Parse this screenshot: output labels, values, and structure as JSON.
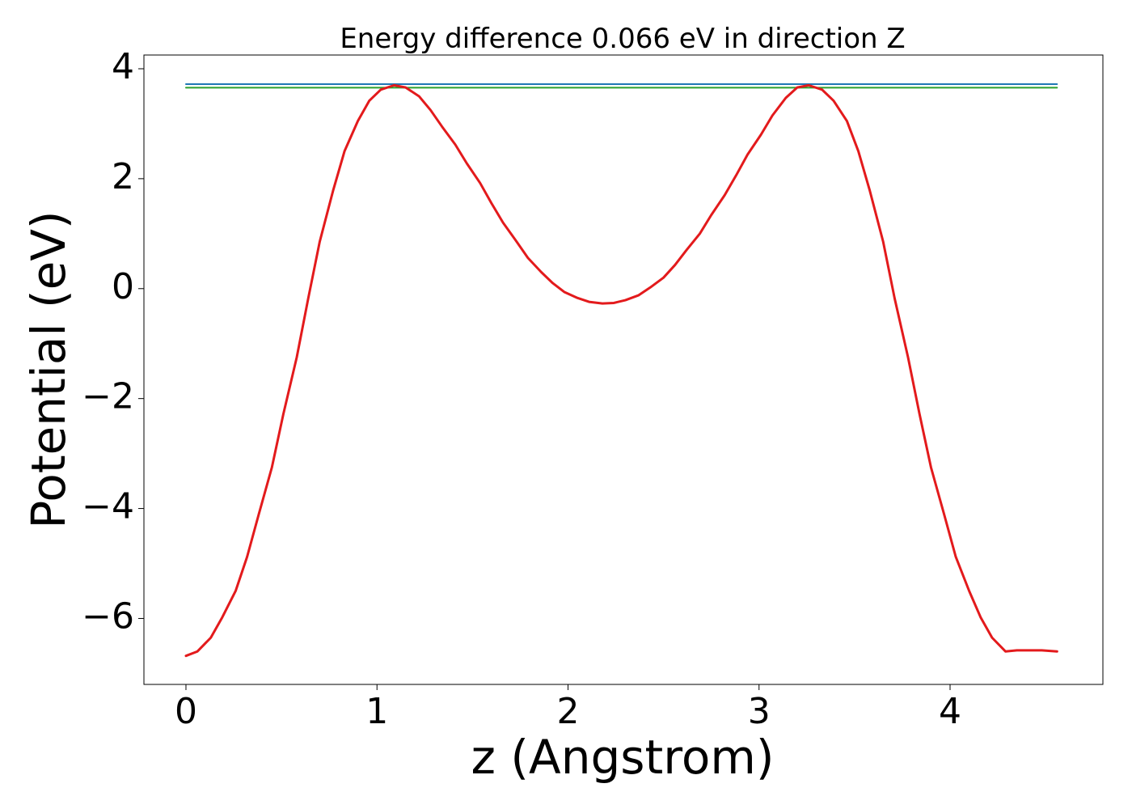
{
  "chart_data": {
    "type": "line",
    "title": "Energy difference 0.066 eV in direction Z",
    "xlabel": "z (Angstrom)",
    "ylabel": "Potential (eV)",
    "xlim": [
      -0.22,
      4.8
    ],
    "ylim": [
      -7.2,
      4.25
    ],
    "xticks": [
      0,
      1,
      2,
      3,
      4
    ],
    "yticks": [
      4,
      2,
      0,
      -2,
      -4,
      -6
    ],
    "xtick_labels": [
      "0",
      "1",
      "2",
      "3",
      "4"
    ],
    "ytick_labels": [
      "4",
      "2",
      "0",
      "−2",
      "−4",
      "−6"
    ],
    "grid": false,
    "series": [
      {
        "color": "#1f77b4",
        "x": [
          0,
          4.56
        ],
        "y": [
          3.72,
          3.72
        ]
      },
      {
        "color": "#2ca02c",
        "x": [
          0,
          4.56
        ],
        "y": [
          3.655,
          3.655
        ]
      },
      {
        "color": "#e31a1c",
        "x": [
          0.0,
          0.06,
          0.13,
          0.19,
          0.26,
          0.32,
          0.38,
          0.45,
          0.51,
          0.58,
          0.64,
          0.7,
          0.77,
          0.83,
          0.9,
          0.96,
          1.02,
          1.09,
          1.15,
          1.22,
          1.28,
          1.34,
          1.41,
          1.47,
          1.54,
          1.6,
          1.66,
          1.73,
          1.79,
          1.86,
          1.92,
          1.98,
          2.05,
          2.11,
          2.18,
          2.24,
          2.3,
          2.37,
          2.43,
          2.5,
          2.56,
          2.62,
          2.69,
          2.75,
          2.82,
          2.88,
          2.94,
          3.01,
          3.07,
          3.14,
          3.2,
          3.26,
          3.33,
          3.39,
          3.46,
          3.52,
          3.58,
          3.65,
          3.71,
          3.78,
          3.84,
          3.9,
          3.97,
          4.03,
          4.1,
          4.16,
          4.22,
          4.29,
          4.35,
          4.42,
          4.48,
          4.56
        ],
        "y": [
          -6.68,
          -6.6,
          -6.35,
          -5.98,
          -5.5,
          -4.88,
          -4.12,
          -3.25,
          -2.28,
          -1.25,
          -0.18,
          0.85,
          1.78,
          2.5,
          3.05,
          3.42,
          3.62,
          3.7,
          3.66,
          3.5,
          3.25,
          2.95,
          2.62,
          2.28,
          1.92,
          1.55,
          1.2,
          0.86,
          0.56,
          0.3,
          0.1,
          -0.06,
          -0.17,
          -0.24,
          -0.27,
          -0.26,
          -0.21,
          -0.12,
          0.02,
          0.2,
          0.43,
          0.7,
          1.0,
          1.34,
          1.7,
          2.06,
          2.44,
          2.8,
          3.15,
          3.47,
          3.66,
          3.7,
          3.62,
          3.42,
          3.05,
          2.5,
          1.78,
          0.85,
          -0.18,
          -1.25,
          -2.28,
          -3.25,
          -4.12,
          -4.88,
          -5.5,
          -5.98,
          -6.35,
          -6.6,
          -6.58,
          -6.58,
          -6.58,
          -6.6
        ]
      }
    ]
  }
}
